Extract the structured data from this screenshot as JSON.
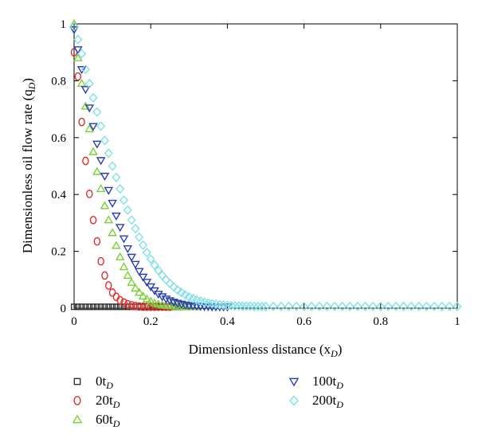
{
  "chart_data": {
    "type": "scatter",
    "xlabel": "Dimensionless distance (x",
    "xlabel_sub": "D",
    "ylabel": "Dimensionless oil flow rate (q",
    "ylabel_sub": "D",
    "xlim": [
      0,
      1
    ],
    "ylim": [
      0,
      1
    ],
    "xticks": [
      "0",
      "0.2",
      "0.4",
      "0.6",
      "0.8",
      "1"
    ],
    "yticks": [
      "0",
      "0.2",
      "0.4",
      "0.6",
      "0.8",
      "1"
    ],
    "grid": false,
    "legend_position": "bottom",
    "series": [
      {
        "name": "0t",
        "name_sub": "D",
        "marker": "square",
        "color": "#333333",
        "x": [
          0.0,
          0.01,
          0.02,
          0.03,
          0.04,
          0.05,
          0.06,
          0.07,
          0.08,
          0.09,
          0.1,
          0.11,
          0.12,
          0.13,
          0.14,
          0.15,
          0.16,
          0.17,
          0.18,
          0.19,
          0.2,
          0.21,
          0.22,
          0.23,
          0.24,
          0.25,
          0.26,
          0.27,
          0.28,
          0.29,
          0.3
        ],
        "y": [
          0.005,
          0.005,
          0.005,
          0.005,
          0.005,
          0.005,
          0.005,
          0.005,
          0.005,
          0.005,
          0.005,
          0.005,
          0.005,
          0.005,
          0.005,
          0.005,
          0.005,
          0.005,
          0.005,
          0.005,
          0.005,
          0.005,
          0.005,
          0.005,
          0.005,
          0.005,
          0.005,
          0.005,
          0.005,
          0.005,
          0.005
        ]
      },
      {
        "name": "20t",
        "name_sub": "D",
        "marker": "circle",
        "color": "#e0302b",
        "x": [
          0.0,
          0.01,
          0.02,
          0.03,
          0.04,
          0.05,
          0.06,
          0.07,
          0.08,
          0.09,
          0.1,
          0.11,
          0.12,
          0.13,
          0.14,
          0.15,
          0.16,
          0.17,
          0.18,
          0.19,
          0.2,
          0.21,
          0.22,
          0.23,
          0.24,
          0.25
        ],
        "y": [
          0.9,
          0.815,
          0.655,
          0.518,
          0.402,
          0.31,
          0.235,
          0.165,
          0.115,
          0.08,
          0.055,
          0.04,
          0.028,
          0.02,
          0.014,
          0.01,
          0.008,
          0.006,
          0.005,
          0.005,
          0.005,
          0.005,
          0.005,
          0.005,
          0.005,
          0.005
        ]
      },
      {
        "name": "60t",
        "name_sub": "D",
        "marker": "triangle-up",
        "color": "#7ccf3a",
        "x": [
          0.0,
          0.01,
          0.02,
          0.03,
          0.04,
          0.05,
          0.06,
          0.07,
          0.08,
          0.09,
          0.1,
          0.11,
          0.12,
          0.13,
          0.14,
          0.15,
          0.16,
          0.17,
          0.18,
          0.19,
          0.2,
          0.21,
          0.22,
          0.23,
          0.24,
          0.25,
          0.26,
          0.27,
          0.28,
          0.29,
          0.3,
          0.31,
          0.32
        ],
        "y": [
          1.0,
          0.88,
          0.79,
          0.71,
          0.63,
          0.55,
          0.48,
          0.42,
          0.36,
          0.31,
          0.265,
          0.22,
          0.18,
          0.145,
          0.115,
          0.09,
          0.07,
          0.055,
          0.042,
          0.032,
          0.024,
          0.018,
          0.014,
          0.011,
          0.009,
          0.008,
          0.007,
          0.006,
          0.006,
          0.005,
          0.005,
          0.005,
          0.005
        ]
      },
      {
        "name": "100t",
        "name_sub": "D",
        "marker": "triangle-down",
        "color": "#2b3fb0",
        "x": [
          0.0,
          0.01,
          0.02,
          0.03,
          0.04,
          0.05,
          0.06,
          0.07,
          0.08,
          0.09,
          0.1,
          0.11,
          0.12,
          0.13,
          0.14,
          0.15,
          0.16,
          0.17,
          0.18,
          0.19,
          0.2,
          0.21,
          0.22,
          0.23,
          0.24,
          0.25,
          0.26,
          0.27,
          0.28,
          0.29,
          0.3,
          0.31,
          0.32,
          0.33,
          0.34,
          0.35,
          0.36,
          0.37,
          0.38,
          0.39,
          0.4
        ],
        "y": [
          0.98,
          0.91,
          0.84,
          0.77,
          0.705,
          0.64,
          0.578,
          0.52,
          0.465,
          0.415,
          0.37,
          0.325,
          0.285,
          0.245,
          0.21,
          0.18,
          0.155,
          0.13,
          0.11,
          0.092,
          0.076,
          0.062,
          0.05,
          0.041,
          0.033,
          0.027,
          0.022,
          0.018,
          0.015,
          0.012,
          0.01,
          0.009,
          0.008,
          0.007,
          0.006,
          0.006,
          0.005,
          0.005,
          0.005,
          0.005,
          0.005
        ]
      },
      {
        "name": "200t",
        "name_sub": "D",
        "marker": "diamond",
        "color": "#7fe0e6",
        "x": [
          0.0,
          0.01,
          0.02,
          0.03,
          0.04,
          0.05,
          0.06,
          0.07,
          0.08,
          0.09,
          0.1,
          0.11,
          0.12,
          0.13,
          0.14,
          0.15,
          0.16,
          0.17,
          0.18,
          0.19,
          0.2,
          0.21,
          0.22,
          0.23,
          0.24,
          0.25,
          0.26,
          0.27,
          0.28,
          0.29,
          0.3,
          0.31,
          0.32,
          0.33,
          0.34,
          0.35,
          0.36,
          0.37,
          0.38,
          0.39,
          0.4,
          0.41,
          0.42,
          0.43,
          0.44,
          0.45,
          0.46,
          0.47,
          0.48,
          0.49,
          0.5,
          0.52,
          0.54,
          0.56,
          0.58,
          0.6,
          0.62,
          0.64,
          0.66,
          0.68,
          0.7,
          0.72,
          0.74,
          0.76,
          0.78,
          0.8,
          0.82,
          0.84,
          0.86,
          0.88,
          0.9,
          0.92,
          0.94,
          0.96,
          0.98,
          1.0
        ],
        "y": [
          0.99,
          0.945,
          0.895,
          0.84,
          0.79,
          0.74,
          0.69,
          0.64,
          0.59,
          0.545,
          0.5,
          0.46,
          0.42,
          0.38,
          0.345,
          0.31,
          0.28,
          0.25,
          0.222,
          0.196,
          0.173,
          0.152,
          0.133,
          0.116,
          0.1,
          0.087,
          0.075,
          0.064,
          0.055,
          0.047,
          0.04,
          0.034,
          0.029,
          0.025,
          0.021,
          0.018,
          0.016,
          0.014,
          0.012,
          0.011,
          0.01,
          0.009,
          0.008,
          0.008,
          0.007,
          0.007,
          0.007,
          0.006,
          0.006,
          0.006,
          0.006,
          0.006,
          0.006,
          0.006,
          0.006,
          0.006,
          0.006,
          0.006,
          0.006,
          0.006,
          0.006,
          0.006,
          0.006,
          0.006,
          0.006,
          0.006,
          0.006,
          0.006,
          0.006,
          0.006,
          0.006,
          0.006,
          0.006,
          0.006,
          0.006,
          0.006
        ]
      }
    ]
  }
}
